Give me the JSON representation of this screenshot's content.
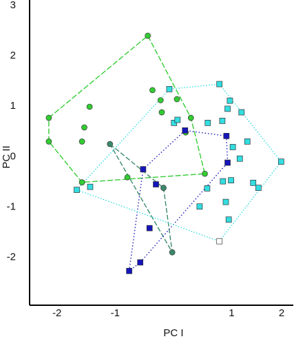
{
  "chart_data": {
    "type": "scatter",
    "x_label": "PC I",
    "y_label": "PC II",
    "xlim": [
      -2.47,
      2.0
    ],
    "ylim": [
      -2.95,
      3
    ],
    "xticks": [
      -2,
      -1,
      1,
      2
    ],
    "yticks": [
      -2,
      -1,
      0,
      1,
      2,
      3
    ],
    "hulls": true,
    "series": [
      {
        "color": "#33cc33",
        "marker": "circle",
        "line_dash": "8 3",
        "x": [
          -0.44,
          -2.14,
          -2.14,
          -1.44,
          -1.53,
          -1.57,
          -1.57,
          -0.79,
          0.54,
          0.21,
          0.3,
          -0.36,
          -0.22,
          -0.2,
          0.06
        ],
        "values": [
          2.4,
          0.77,
          0.3,
          0.99,
          0.58,
          0.3,
          -0.51,
          -0.41,
          -0.34,
          0.48,
          0.77,
          1.32,
          1.12,
          0.88,
          1.14
        ]
      },
      {
        "color": "#3a8a6a",
        "marker": "circle",
        "line_dash": "7 3",
        "x": [
          -1.09,
          -0.17,
          -0.02
        ],
        "values": [
          0.25,
          -0.62,
          -1.9
        ]
      },
      {
        "color": "#1515bb",
        "marker": "square",
        "line_dash": "1.5 3",
        "x": [
          0.2,
          0.91,
          0.93,
          -0.52,
          -0.3,
          -0.41,
          -0.57,
          -0.76
        ],
        "values": [
          0.52,
          0.41,
          -0.12,
          -0.25,
          -0.55,
          -1.42,
          -2.1,
          -2.27
        ]
      },
      {
        "color": "#33dde0",
        "marker": "square",
        "line_dash": "1.5 2.5",
        "open_points": [
          23
        ],
        "open_color": "#ffffff",
        "x": [
          0.79,
          -0.07,
          0.97,
          0.93,
          1.17,
          0.01,
          0.07,
          0.59,
          0.84,
          1.27,
          1.02,
          1.14,
          1.85,
          0.85,
          0.99,
          1.37,
          1.46,
          0.58,
          0.9,
          0.45,
          0.95,
          -1.66,
          -1.43,
          0.79
        ],
        "values": [
          1.44,
          1.34,
          1.11,
          0.95,
          0.88,
          0.67,
          0.73,
          0.67,
          0.71,
          0.3,
          0.19,
          -0.04,
          -0.1,
          -0.49,
          -0.47,
          -0.52,
          -0.62,
          -0.63,
          -0.9,
          -0.99,
          -1.25,
          -0.66,
          -0.6,
          -1.68
        ]
      }
    ]
  }
}
